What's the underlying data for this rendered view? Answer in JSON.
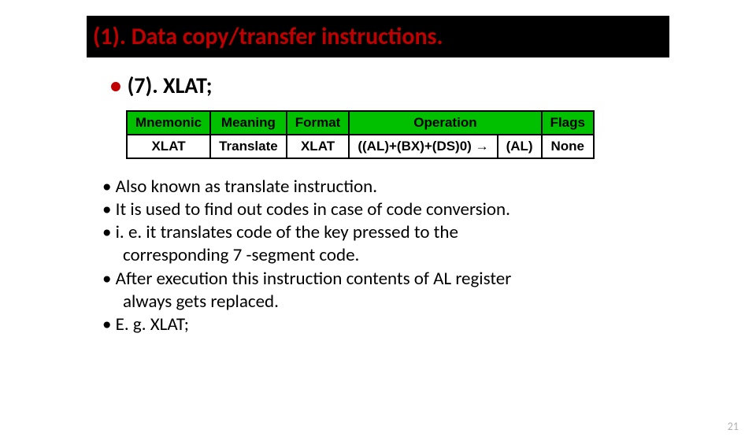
{
  "title": "(1). Data copy/transfer instructions.",
  "subtitle_bullet": "•",
  "subtitle": "(7). XLAT;",
  "table": {
    "headers": {
      "c0": "Mnemonic",
      "c1": "Meaning",
      "c2": "Format",
      "c3": "Operation",
      "c4": "Flags"
    },
    "row": {
      "mnemonic": "XLAT",
      "meaning": "Translate",
      "format": "XLAT",
      "op_lhs": "((AL)+(BX)+(DS)0)",
      "op_arrow": "→",
      "op_rhs": "(AL)",
      "flags": "None"
    },
    "header_bg": "#00c000",
    "border_color": "#000000"
  },
  "bullets": {
    "b0": "• Also known as translate instruction.",
    "b1": "• It is used to find out codes in case of code conversion.",
    "b2": "• i. e. it translates code of the key pressed to the",
    "b2c": "corresponding 7 -segment code.",
    "b3": "• After execution this instruction contents of AL register",
    "b3c": "always gets replaced.",
    "b4": "• E. g. XLAT;"
  },
  "page_number": "21",
  "colors": {
    "title_bg": "#000000",
    "title_fg": "#c00000",
    "accent_red": "#c00000"
  }
}
